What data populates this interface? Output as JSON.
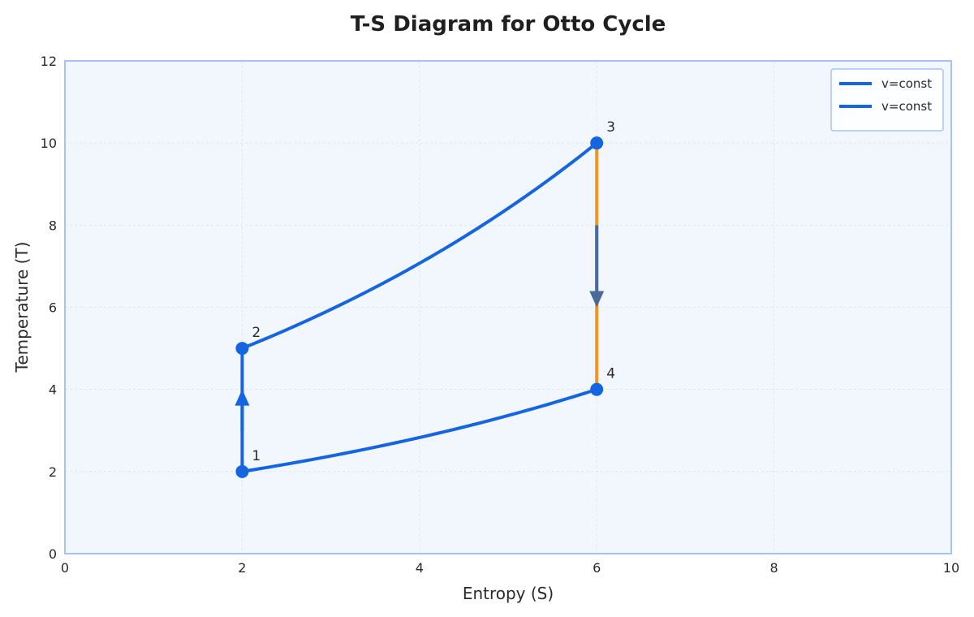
{
  "colors": {
    "plot_bg": "#f2f7fd",
    "plot_border": "#a7c3f2",
    "grid": "#dde6f2",
    "curve": "#1565e0",
    "isentrope_down": "#f5951f",
    "arrow_down": "#4a6a99"
  },
  "chart_data": {
    "type": "line",
    "title": "T-S Diagram for Otto Cycle",
    "xlabel": "Entropy (S)",
    "ylabel": "Temperature (T)",
    "xlim": [
      0,
      10
    ],
    "ylim": [
      0,
      12
    ],
    "xticks": [
      0,
      2,
      4,
      6,
      8,
      10
    ],
    "yticks": [
      0,
      2,
      4,
      6,
      8,
      10,
      12
    ],
    "grid": true,
    "legend_position": "top-right",
    "legend": [
      "v=const",
      "v=const"
    ],
    "points": [
      {
        "label": "1",
        "s": 2,
        "t": 2
      },
      {
        "label": "2",
        "s": 2,
        "t": 5
      },
      {
        "label": "3",
        "s": 6,
        "t": 10
      },
      {
        "label": "4",
        "s": 6,
        "t": 4
      }
    ],
    "series": [
      {
        "name": "v=const",
        "color": "#1565e0",
        "from": "2",
        "to": "3",
        "shape": "exponential"
      },
      {
        "name": "v=const",
        "color": "#1565e0",
        "from": "1",
        "to": "4",
        "shape": "exponential"
      },
      {
        "color": "#1565e0",
        "from": "1",
        "to": "2",
        "shape": "vertical"
      },
      {
        "color": "#f5951f",
        "from": "3",
        "to": "4",
        "shape": "vertical"
      }
    ],
    "arrows": [
      {
        "s": 2,
        "from_t": 3,
        "to_t": 4,
        "direction": "up",
        "color": "#1565e0"
      },
      {
        "s": 6,
        "from_t": 8,
        "to_t": 6,
        "direction": "down",
        "color": "#4a6a99"
      }
    ]
  }
}
